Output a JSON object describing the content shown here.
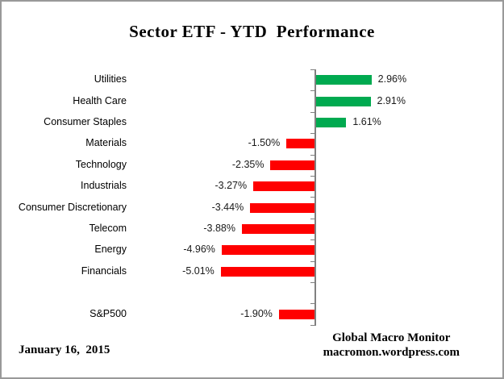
{
  "title": "Sector ETF - YTD  Performance",
  "footer": {
    "date": "January 16,  2015",
    "source_line1": "Global Macro Monitor",
    "source_line2": "macromon.wordpress.com"
  },
  "colors": {
    "positive": "#00AA50",
    "negative": "#FF0000",
    "axis": "#808080",
    "frame_border": "#999999",
    "text": "#000000"
  },
  "chart_data": {
    "type": "bar",
    "orientation": "horizontal",
    "title": "Sector ETF - YTD  Performance",
    "xlabel": "",
    "ylabel": "",
    "xlim": [
      -6,
      6
    ],
    "grid": false,
    "legend": false,
    "value_unit": "%",
    "categories": [
      "Utilities",
      "Health Care",
      "Consumer Staples",
      "Materials",
      "Technology",
      "Industrials",
      "Consumer Discretionary",
      "Telecom",
      "Energy",
      "Financials",
      "",
      "S&P500"
    ],
    "values": [
      2.96,
      2.91,
      1.61,
      -1.5,
      -2.35,
      -3.27,
      -3.44,
      -3.88,
      -4.96,
      -5.01,
      null,
      -1.9
    ],
    "value_labels": [
      "2.96%",
      "2.91%",
      "1.61%",
      "-1.50%",
      "-2.35%",
      "-3.27%",
      "-3.44%",
      "-3.88%",
      "-4.96%",
      "-5.01%",
      "",
      "-1.90%"
    ]
  }
}
